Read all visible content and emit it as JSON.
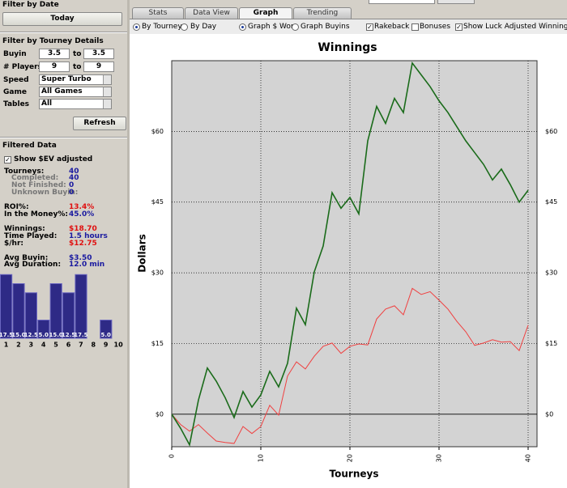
{
  "sidebar": {
    "filter_by_date": {
      "title": "Filter by Date",
      "button": "Today"
    },
    "filter_by_tourney": {
      "title": "Filter by Tourney Details",
      "buyin": {
        "label": "Buyin",
        "from": "3.5",
        "to_label": "to",
        "to": "3.5"
      },
      "players": {
        "label": "# Players",
        "from": "9",
        "to_label": "to",
        "to": "9"
      },
      "speed": {
        "label": "Speed",
        "value": "Super Turbo"
      },
      "game": {
        "label": "Game",
        "value": "All Games"
      },
      "tables": {
        "label": "Tables",
        "value": "All"
      },
      "button": "Refresh"
    },
    "filtered_data": {
      "title": "Filtered Data",
      "checkbox": "Show $EV adjusted",
      "stats": [
        {
          "label": "Tourneys:",
          "value": "40"
        },
        {
          "label": "Completed:",
          "value": "40"
        },
        {
          "label": "Not Finished:",
          "value": "0"
        },
        {
          "label": "Unknown Buyin:",
          "value": "0"
        },
        {
          "label": "ROI%:",
          "value": "13.4%"
        },
        {
          "label": "In the Money%:",
          "value": "45.0%"
        },
        {
          "label": "Winnings:",
          "value": "$18.70"
        },
        {
          "label": "Time Played:",
          "value": "1.5 hours"
        },
        {
          "label": "$/hr:",
          "value": "$12.75"
        },
        {
          "label": "Avg Buyin:",
          "value": "$3.50"
        },
        {
          "label": "Avg Duration:",
          "value": "12.0 min"
        }
      ]
    },
    "histogram": {
      "categories": [
        "1",
        "2",
        "3",
        "4",
        "5",
        "6",
        "7",
        "8",
        "9",
        "10"
      ],
      "values": [
        17.5,
        15.0,
        12.5,
        5.0,
        15.0,
        12.5,
        17.5,
        null,
        5.0,
        null
      ],
      "value_labels": [
        "17.5",
        "15.0",
        "12.5",
        "5.0",
        "15.0",
        "12.5",
        "17.5",
        null,
        "5.0",
        null
      ]
    }
  },
  "tabs": [
    "Stats",
    "Data View",
    "Graph",
    "Trending"
  ],
  "options": [
    "By Tourney",
    "By Day",
    "Graph $ Won",
    "Graph Buyins",
    "Rakeback",
    "Bonuses",
    "Show Luck Adjusted Winnings"
  ],
  "chart_data": {
    "type": "line",
    "title": "Winnings",
    "x_label": "Tourneys",
    "y_label": "Dollars",
    "x": [
      0,
      1,
      2,
      3,
      4,
      5,
      6,
      7,
      8,
      9,
      10,
      11,
      12,
      13,
      14,
      15,
      16,
      17,
      18,
      19,
      20,
      21,
      22,
      23,
      24,
      25,
      26,
      27,
      28,
      29,
      30,
      31,
      32,
      33,
      34,
      35,
      36,
      37,
      38,
      39,
      40
    ],
    "series": [
      {
        "color": "#1a6b1a",
        "values": [
          0,
          -3,
          -6.5,
          3,
          9.8,
          7,
          3.5,
          -0.7,
          4.8,
          1.5,
          4.1,
          9.1,
          5.8,
          10.8,
          22.5,
          19,
          30.2,
          35.7,
          47,
          43.7,
          46,
          42.5,
          58,
          65.3,
          61.7,
          67,
          64,
          74.5,
          72,
          69.5,
          66.5,
          64,
          61,
          58,
          55.5,
          53,
          49.7,
          52,
          48.7,
          45,
          47.5
        ]
      },
      {
        "color": "#f04040",
        "values": [
          0,
          -2.2,
          -3.6,
          -2.2,
          -4,
          -5.7,
          -6,
          -6.2,
          -2.6,
          -4.1,
          -2.6,
          1.9,
          -0.2,
          8.1,
          11.1,
          9.6,
          12.3,
          14.4,
          15.1,
          12.9,
          14.4,
          14.9,
          14.7,
          20.2,
          22.3,
          23,
          21.1,
          26.7,
          25.4,
          26,
          24.2,
          22.3,
          19.7,
          17.5,
          14.6,
          15.1,
          15.8,
          15.3,
          15.4,
          13.5,
          18.9
        ]
      }
    ],
    "xlim": [
      0,
      41
    ],
    "xticks": [
      0,
      10,
      20,
      30,
      40
    ],
    "ylim": [
      -6.9,
      75
    ],
    "yticks": [
      {
        "value": 0,
        "label": "$0"
      },
      {
        "value": 15,
        "label": "$15"
      },
      {
        "value": 30,
        "label": "$30"
      },
      {
        "value": 45,
        "label": "$45"
      },
      {
        "value": 60,
        "label": "$60"
      }
    ],
    "grid": true
  }
}
